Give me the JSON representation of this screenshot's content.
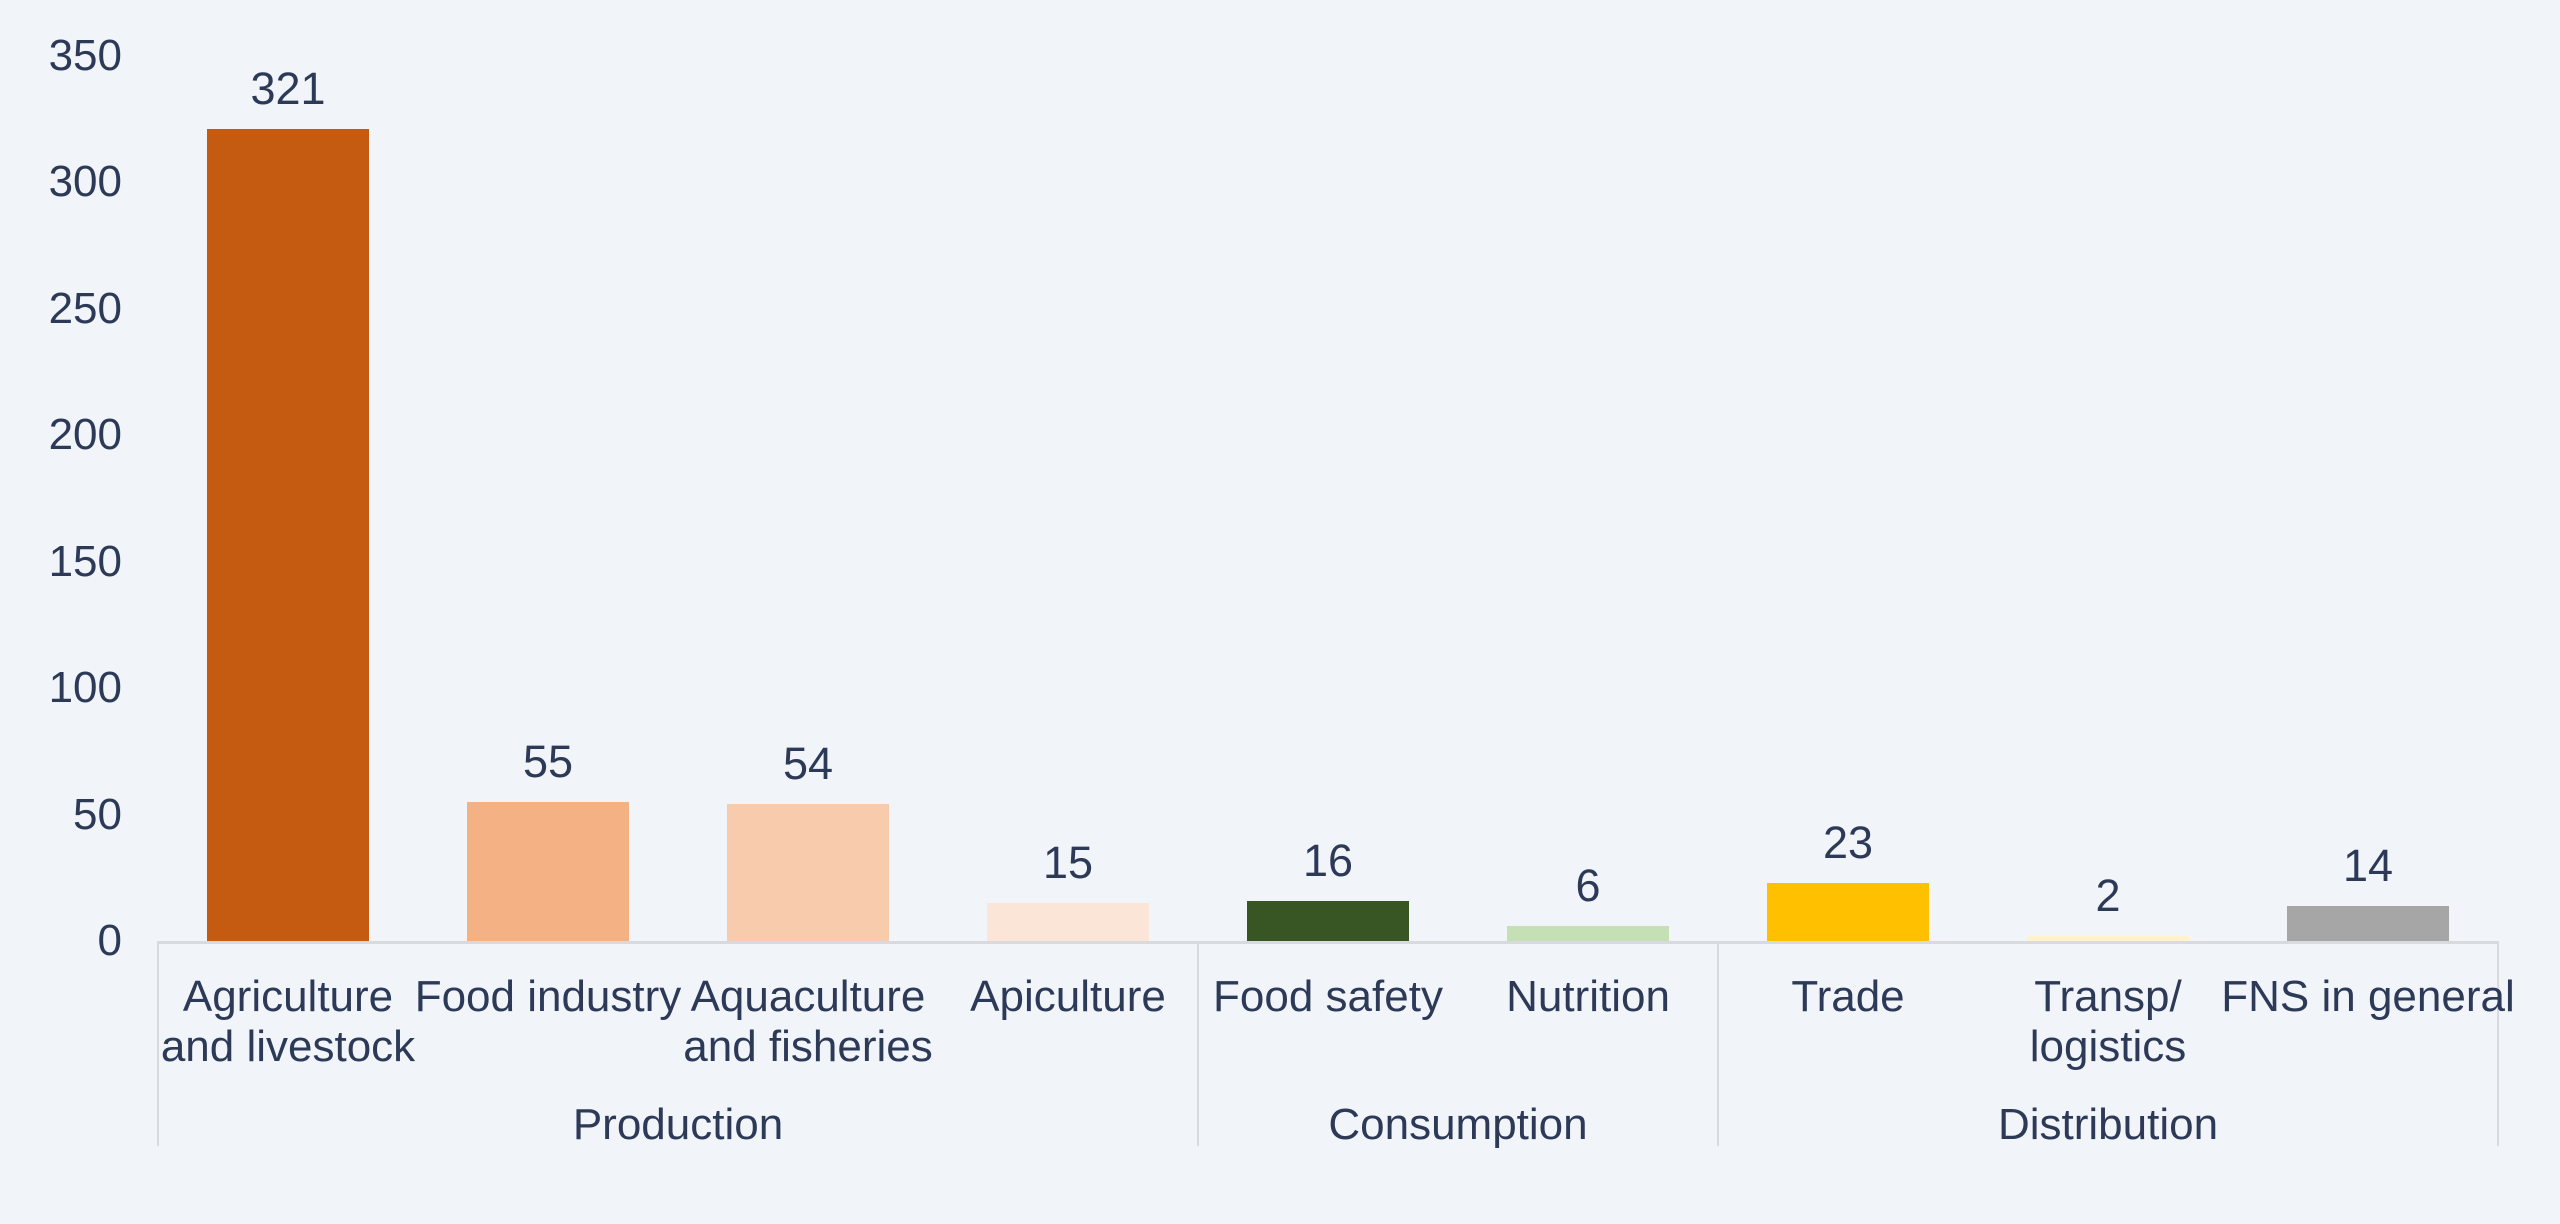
{
  "chart_data": {
    "type": "bar",
    "title": "",
    "categories": [
      "Agriculture and livestock",
      "Food industry",
      "Aquaculture and fisheries",
      "Apiculture",
      "Food safety",
      "Nutrition",
      "Trade",
      "Transp/ logistics",
      "FNS in general"
    ],
    "category_lines": [
      [
        "Agriculture",
        "and livestock"
      ],
      [
        "Food industry"
      ],
      [
        "Aquaculture",
        "and fisheries"
      ],
      [
        "Apiculture"
      ],
      [
        "Food safety"
      ],
      [
        "Nutrition"
      ],
      [
        "Trade"
      ],
      [
        "Transp/",
        "logistics"
      ],
      [
        "FNS in general"
      ]
    ],
    "values": [
      321,
      55,
      54,
      15,
      16,
      6,
      23,
      2,
      14
    ],
    "data_labels": [
      "321",
      "55",
      "54",
      "15",
      "16",
      "6",
      "23",
      "2",
      "14"
    ],
    "bar_colors": [
      "#C55A11",
      "#F4B183",
      "#F8CBAD",
      "#FBE5D6",
      "#375623",
      "#C5E0B4",
      "#FFC000",
      "#FFF2CC",
      "#A6A6A6"
    ],
    "groups": [
      {
        "label": "Production",
        "span": 4
      },
      {
        "label": "Consumption",
        "span": 2
      },
      {
        "label": "Distribution",
        "span": 3
      }
    ],
    "y_ticks": [
      0,
      50,
      100,
      150,
      200,
      250,
      300,
      350
    ],
    "ylim": [
      0,
      350
    ],
    "xlabel": "",
    "ylabel": "",
    "grid": false,
    "legend": false
  },
  "style": {
    "background": "#F1F4F8",
    "text_color": "#2C3A58",
    "axis_line_color": "#D8DADD"
  }
}
